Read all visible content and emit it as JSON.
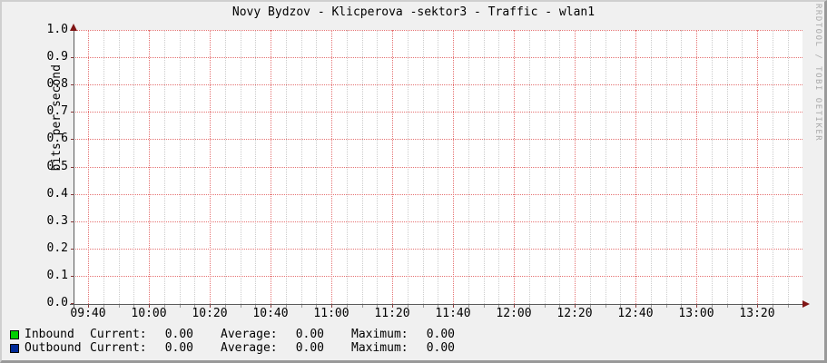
{
  "title": "Novy Bydzov - Klicperova -sektor3 - Traffic - wlan1",
  "watermark": "RRDTOOL / TOBI OETIKER",
  "y_axis": {
    "label": "bits per second",
    "ticks": [
      "1.0",
      "0.9",
      "0.8",
      "0.7",
      "0.6",
      "0.5",
      "0.4",
      "0.3",
      "0.2",
      "0.1",
      "0.0"
    ]
  },
  "x_axis": {
    "ticks": [
      "09:40",
      "10:00",
      "10:20",
      "10:40",
      "11:00",
      "11:20",
      "11:40",
      "12:00",
      "12:20",
      "12:40",
      "13:00",
      "13:20"
    ]
  },
  "colors": {
    "inbound": "#00cf00",
    "outbound": "#002a97",
    "major_grid": "#e57373",
    "minor_grid": "#cccccc",
    "axis": "#5b5b5b",
    "arrow": "#801515",
    "background": "#f0f0f0",
    "canvas": "#ffffff"
  },
  "legend": {
    "rows": [
      {
        "name": "Inbound",
        "color": "#00cf00",
        "current_label": "Current:",
        "current": "0.00",
        "average_label": "Average:",
        "average": "0.00",
        "maximum_label": "Maximum:",
        "maximum": "0.00"
      },
      {
        "name": "Outbound",
        "color": "#002a97",
        "current_label": "Current:",
        "current": "0.00",
        "average_label": "Average:",
        "average": "0.00",
        "maximum_label": "Maximum:",
        "maximum": "0.00"
      }
    ]
  },
  "chart_data": {
    "type": "line",
    "title": "Novy Bydzov - Klicperova -sektor3 - Traffic - wlan1",
    "xlabel": "",
    "ylabel": "bits per second",
    "ylim": [
      0.0,
      1.0
    ],
    "y_ticks": [
      0.0,
      0.1,
      0.2,
      0.3,
      0.4,
      0.5,
      0.6,
      0.7,
      0.8,
      0.9,
      1.0
    ],
    "x_tick_labels": [
      "09:40",
      "10:00",
      "10:20",
      "10:40",
      "11:00",
      "11:20",
      "11:40",
      "12:00",
      "12:20",
      "12:40",
      "13:00",
      "13:20"
    ],
    "grid": true,
    "legend_position": "bottom",
    "series": [
      {
        "name": "Inbound",
        "color": "#00cf00",
        "values": [
          0,
          0,
          0,
          0,
          0,
          0,
          0,
          0,
          0,
          0,
          0,
          0
        ],
        "current": 0.0,
        "average": 0.0,
        "maximum": 0.0
      },
      {
        "name": "Outbound",
        "color": "#002a97",
        "values": [
          0,
          0,
          0,
          0,
          0,
          0,
          0,
          0,
          0,
          0,
          0,
          0
        ],
        "current": 0.0,
        "average": 0.0,
        "maximum": 0.0
      }
    ]
  }
}
